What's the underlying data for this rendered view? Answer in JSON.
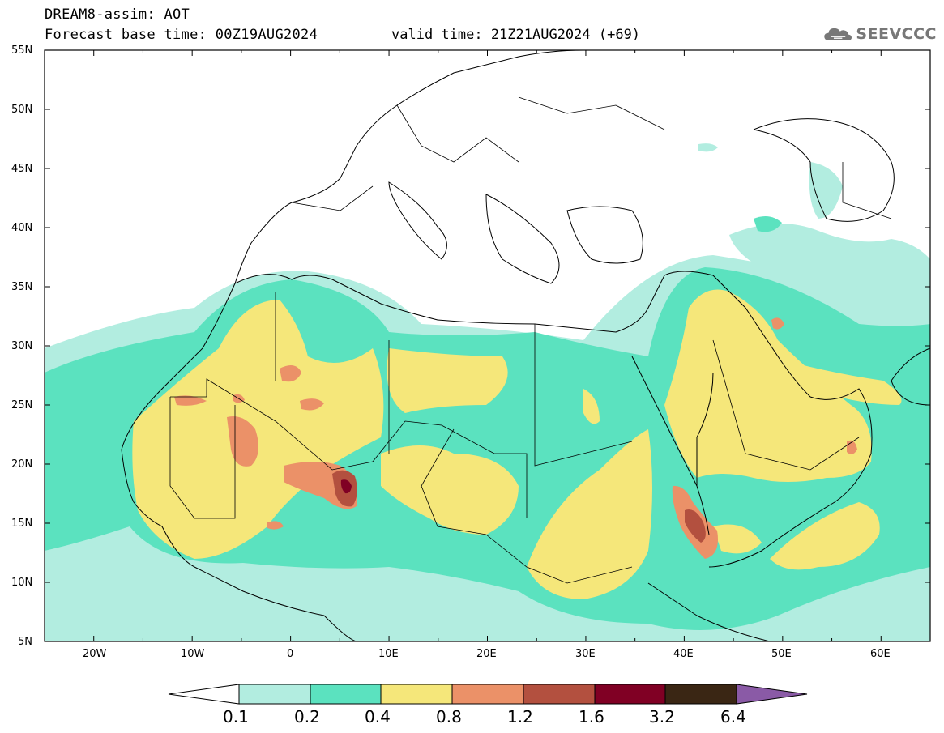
{
  "header": {
    "title_line1": "DREAM8-assim: AOT",
    "base_time": "Forecast base time: 00Z19AUG2024",
    "valid_time": "valid time: 21Z21AUG2024 (+69)"
  },
  "logo": {
    "text": "SEEVCCC",
    "icon": "cloud-icon"
  },
  "map": {
    "lat_labels": [
      "55N",
      "50N",
      "45N",
      "40N",
      "35N",
      "30N",
      "25N",
      "20N",
      "15N",
      "10N",
      "5N"
    ],
    "lon_labels": [
      "20W",
      "10W",
      "0",
      "10E",
      "20E",
      "30E",
      "40E",
      "50E",
      "60E"
    ],
    "lon_range": [
      -25,
      65
    ],
    "lat_range": [
      5,
      55
    ]
  },
  "colorbar": {
    "labels": [
      "0.1",
      "0.2",
      "0.4",
      "0.8",
      "1.2",
      "1.6",
      "3.2",
      "6.4"
    ],
    "colors": [
      "#ffffff",
      "#b2ede0",
      "#5be2bf",
      "#f5e77a",
      "#eb9168",
      "#b3503f",
      "#800024",
      "#3a2614",
      "#8a5aa6"
    ]
  }
}
